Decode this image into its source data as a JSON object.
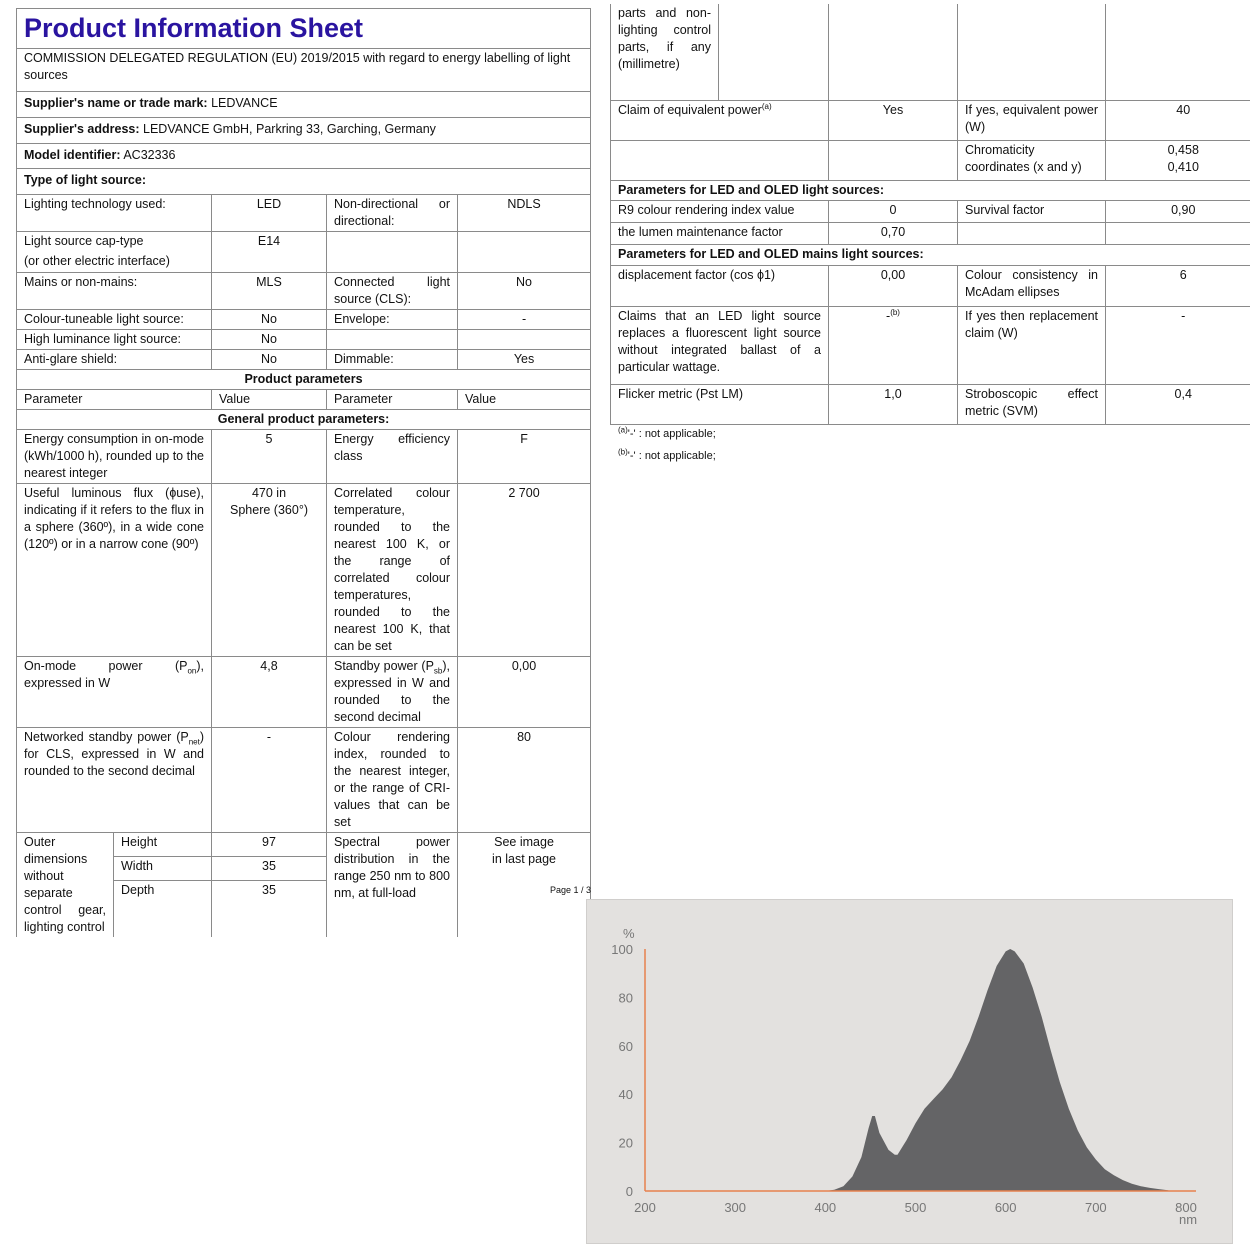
{
  "left": {
    "title": "Product Information Sheet",
    "subtitle": "COMMISSION DELEGATED REGULATION (EU) 2019/2015 with regard to energy labelling of light sources",
    "supplier_name": {
      "label": "Supplier's name or trade mark:",
      "value": "LEDVANCE"
    },
    "supplier_address": {
      "label": "Supplier's address:",
      "value": "LEDVANCE GmbH, Parkring 33, Garching, Germany"
    },
    "model": {
      "label": "Model identifier:",
      "value": "AC32336"
    },
    "type_label": "Type of light source:",
    "lighting_tech": {
      "label": "Lighting technology used:",
      "value": "LED",
      "label2": "Non-directional or directional:",
      "value2": "NDLS"
    },
    "cap": {
      "label1": "Light source cap-type",
      "label2": "(or other electric interface)",
      "value": "E14"
    },
    "mains": {
      "label": "Mains or non-mains:",
      "value": "MLS",
      "label2": "Connected light source (CLS):",
      "value2": "No"
    },
    "tuneable": {
      "label": "Colour-tuneable light source:",
      "value": "No",
      "label2": "Envelope:",
      "value2": "-"
    },
    "high_lum": {
      "label": "High luminance light source:",
      "value": "No"
    },
    "antiglare": {
      "label": "Anti-glare shield:",
      "value": "No",
      "label2": "Dimmable:",
      "value2": "Yes"
    },
    "product_params": "Product parameters",
    "headers": [
      "Parameter",
      "Value",
      "Parameter",
      "Value"
    ],
    "general": "General product parameters:",
    "energy": {
      "label": "Energy consumption in on-mode (kWh/1000 h), rounded up to the nearest integer",
      "value": "5",
      "label2": "Energy efficiency class",
      "value2": "F"
    },
    "flux": {
      "label": "Useful luminous flux (ɸuse), indicating if it refers to the flux in a sphere (360º), in a wide cone (120º) or in a narrow cone (90º)",
      "value1": "470 in",
      "value2": "Sphere (360°)",
      "label2": "Correlated colour temperature, rounded to the nearest 100 K, or the range of correlated colour temperatures, rounded to the nearest 100 K, that can be set",
      "value3": "2 700"
    },
    "onmode": {
      "pre": "On-mode power (P",
      "sub": "on",
      "post": "), expressed in W",
      "value": "4,8",
      "pre2": "Standby power (P",
      "sub2": "sb",
      "post2": "), expressed in W and rounded to the second decimal",
      "value2": "0,00"
    },
    "networked": {
      "pre": "Networked standby power (P",
      "sub": "net",
      "post": ") for CLS, expressed in W and rounded to the second decimal",
      "value": "-",
      "label2": "Colour rendering index, rounded to the nearest integer, or the range of CRI-values that can be set",
      "value2": "80"
    },
    "dims": {
      "label": "Outer dimensions without separate control gear, lighting control",
      "height": "Height",
      "height_v": "97",
      "width": "Width",
      "width_v": "35",
      "depth": "Depth",
      "depth_v": "35",
      "label2": "Spectral power distribution in the range 250 nm to 800 nm, at full-load",
      "value2a": "See image",
      "value2b": "in last page"
    },
    "page": "Page 1 / 3"
  },
  "right": {
    "cont": "parts and non-lighting control parts, if any (millimetre)",
    "equiv": {
      "label": "Claim of equivalent power",
      "sup": "(a)",
      "value": "Yes",
      "label2": "If yes, equivalent power (W)",
      "value2": "40"
    },
    "chroma": {
      "label": "Chromaticity coordinates (x and y)",
      "x": "0,458",
      "y": "0,410"
    },
    "led_header": "Parameters for LED and OLED light sources:",
    "r9": {
      "label": "R9 colour rendering index value",
      "value": "0",
      "label2": "Survival factor",
      "value2": "0,90"
    },
    "lumen": {
      "label": "the lumen maintenance factor",
      "value": "0,70"
    },
    "mains_header": "Parameters for LED and OLED mains light sources:",
    "disp": {
      "label": "displacement factor (cos ϕ1)",
      "value": "0,00",
      "label2": "Colour consistency in McAdam ellipses",
      "value2": "6"
    },
    "claims": {
      "label": "Claims that an LED light source replaces a fluorescent light source without integrated ballast of a particular wattage.",
      "value": "-",
      "sup": "(b)",
      "label2": "If yes then replacement claim (W)",
      "value2": "-"
    },
    "flicker": {
      "label": "Flicker metric (Pst LM)",
      "value": "1,0",
      "label2": "Stroboscopic effect metric (SVM)",
      "value2": "0,4"
    },
    "foot_a": {
      "sup": "(a)",
      "text": "'-' : not applicable;"
    },
    "foot_b": {
      "sup": "(b)",
      "text": "'-' : not applicable;"
    }
  },
  "chart_data": {
    "type": "area",
    "ylabel": "%",
    "xlabel": "nm",
    "xlim": [
      200,
      800
    ],
    "ylim": [
      0,
      100
    ],
    "xticks": [
      200,
      300,
      400,
      500,
      600,
      700,
      800
    ],
    "yticks": [
      0,
      20,
      40,
      60,
      80,
      100
    ],
    "grid": false,
    "colors": {
      "fill": "#646466",
      "axis": "#e8814f",
      "background": "#e3e1df"
    },
    "x": [
      400,
      410,
      420,
      430,
      440,
      448,
      452,
      455,
      460,
      470,
      477,
      480,
      490,
      500,
      510,
      520,
      530,
      540,
      550,
      560,
      570,
      580,
      590,
      600,
      605,
      610,
      620,
      630,
      640,
      650,
      660,
      670,
      680,
      690,
      700,
      710,
      720,
      730,
      740,
      750,
      760,
      770,
      780,
      782
    ],
    "y": [
      0,
      0.5,
      2,
      6,
      14,
      26,
      31,
      31,
      24,
      17,
      15,
      15,
      21,
      28,
      34,
      38,
      42,
      47,
      54,
      62,
      72,
      83,
      93,
      99,
      100,
      99,
      94,
      84,
      72,
      58,
      45,
      34,
      25,
      18,
      13,
      9,
      6.5,
      4.5,
      3,
      2,
      1.3,
      0.8,
      0.3,
      0
    ]
  }
}
